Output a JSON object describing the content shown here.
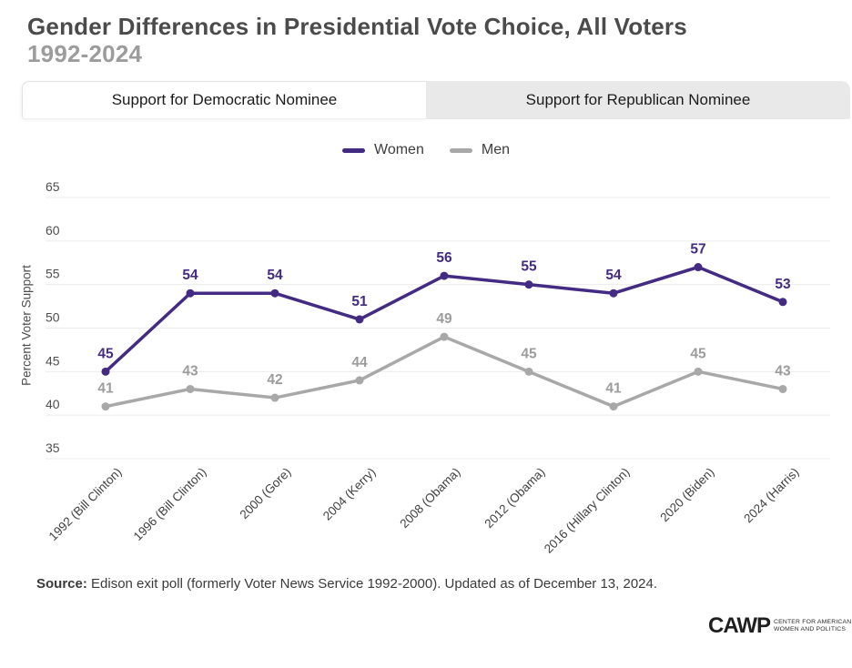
{
  "title": "Gender Differences in Presidential Vote Choice, All Voters",
  "subtitle": "1992-2024",
  "tabs": [
    {
      "label": "Support for Democratic Nominee",
      "active": true
    },
    {
      "label": "Support for Republican Nominee",
      "active": false
    }
  ],
  "legend": [
    {
      "label": "Women",
      "color": "#432a83"
    },
    {
      "label": "Men",
      "color": "#a8a8a8"
    }
  ],
  "chart_data": {
    "type": "line",
    "title": "Gender Differences in Presidential Vote Choice, All Voters 1992-2024 (Support for Democratic Nominee)",
    "xlabel": "",
    "ylabel": "Percent Voter Support",
    "ylim": [
      35,
      65
    ],
    "yticks": [
      35,
      40,
      45,
      50,
      55,
      60,
      65
    ],
    "grid": true,
    "legend_position": "top",
    "categories": [
      "1992 (Bill Clinton)",
      "1996 (Bill Clinton)",
      "2000 (Gore)",
      "2004 (Kerry)",
      "2008 (Obama)",
      "2012 (Obama)",
      "2016 (Hillary Clinton)",
      "2020 (Biden)",
      "2024 (Harris)"
    ],
    "series": [
      {
        "name": "Women",
        "color": "#432a83",
        "label_color": "#432a83",
        "values": [
          45,
          54,
          54,
          51,
          56,
          55,
          54,
          57,
          53
        ]
      },
      {
        "name": "Men",
        "color": "#a8a8a8",
        "label_color": "#9c9c9c",
        "values": [
          41,
          43,
          42,
          44,
          49,
          45,
          41,
          45,
          43
        ]
      }
    ]
  },
  "source": {
    "prefix": "Source:",
    "text": " Edison exit poll (formerly Voter News Service 1992-2000). Updated as of December 13, 2024."
  },
  "logo": {
    "acronym": "CAWP",
    "line1": "CENTER FOR AMERICAN",
    "line2": "WOMEN AND POLITICS"
  }
}
